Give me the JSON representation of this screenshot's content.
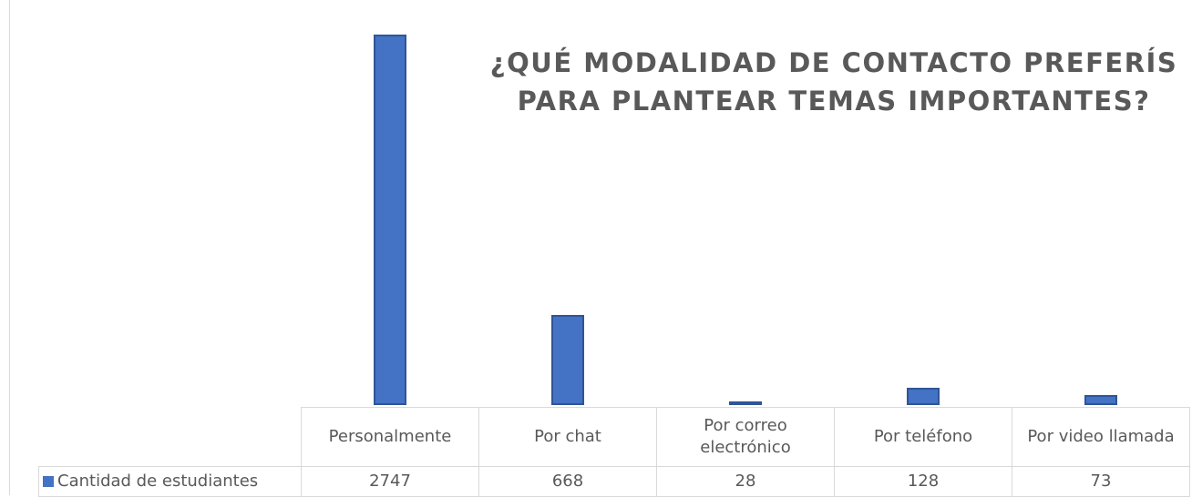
{
  "chart_data": {
    "type": "bar",
    "title": "¿QUÉ MODALIDAD DE CONTACTO PREFERÍS PARA PLANTEAR TEMAS IMPORTANTES?",
    "categories": [
      "Personalmente",
      "Por chat",
      "Por correo electrónico",
      "Por teléfono",
      "Por video llamada"
    ],
    "series": [
      {
        "name": "Cantidad de estudiantes",
        "color": "#4472c4",
        "values": [
          2747,
          668,
          28,
          128,
          73
        ]
      }
    ],
    "ylim": [
      0,
      2750
    ]
  }
}
